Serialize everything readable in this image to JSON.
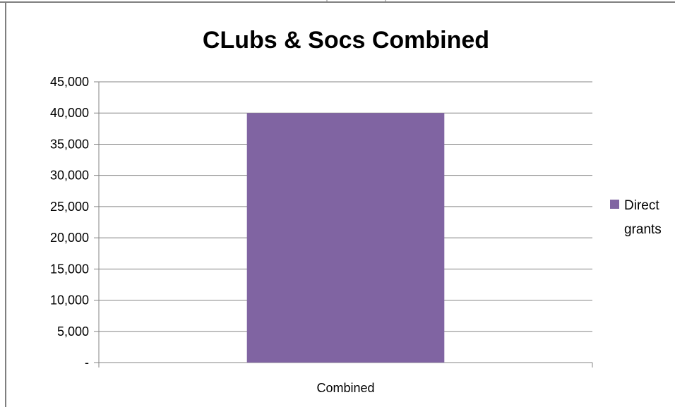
{
  "chart_data": {
    "type": "bar",
    "title": "CLubs & Socs Combined",
    "categories": [
      "Combined"
    ],
    "series": [
      {
        "name": "Direct grants",
        "values": [
          40000
        ],
        "color": "#8064A2"
      }
    ],
    "legend": {
      "labels": [
        "Direct",
        "grants"
      ],
      "placement": "right"
    },
    "ylim": [
      0,
      45000
    ],
    "y_ticks": [
      0,
      5000,
      10000,
      15000,
      20000,
      25000,
      30000,
      35000,
      40000,
      45000
    ],
    "y_tick_labels": [
      "-",
      "5,000",
      "10,000",
      "15,000",
      "20,000",
      "25,000",
      "30,000",
      "35,000",
      "40,000",
      "45,000"
    ],
    "grid": true
  }
}
